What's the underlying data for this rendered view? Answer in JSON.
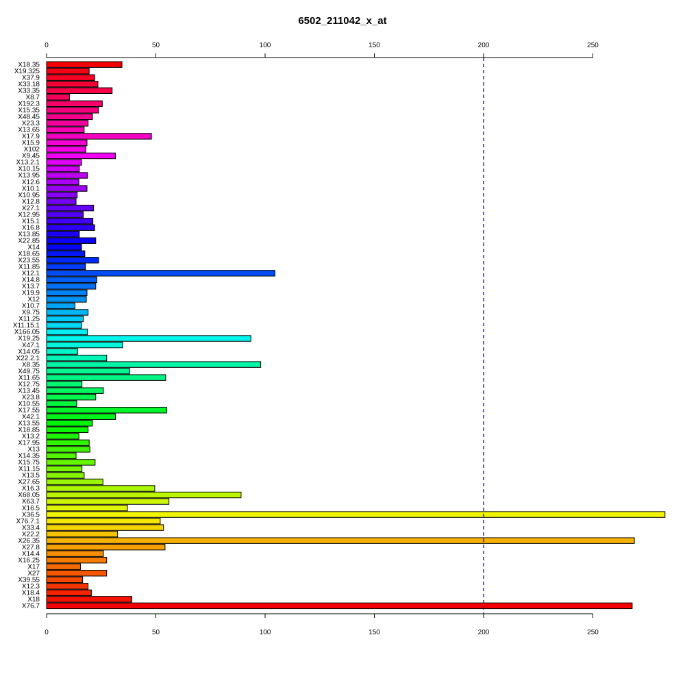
{
  "chart_data": {
    "type": "bar",
    "orientation": "horizontal",
    "title": "6502_211042_x_at",
    "xlabel": "",
    "ylabel": "",
    "xlim": [
      0,
      283
    ],
    "x_ticks": [
      0,
      50,
      100,
      150,
      200,
      250
    ],
    "x_tick_labels": [
      "0",
      "50",
      "100",
      "150",
      "200",
      "250"
    ],
    "axes": [
      "top",
      "bottom"
    ],
    "grid": false,
    "reference_line": {
      "value": 200,
      "style": "dashed",
      "color": "#00008b"
    },
    "color_scheme": "rainbow",
    "categories": [
      "X18.35",
      "X19.325",
      "X37.9",
      "X33.18",
      "X33.35",
      "X8.7",
      "X192.3",
      "X15.35",
      "X48.45",
      "X23.3",
      "X13.65",
      "X17.9",
      "X15.9",
      "X102",
      "X9.45",
      "X13.2.1",
      "X10.15",
      "X13.95",
      "X12.6",
      "X10.1",
      "X10.95",
      "X12.8",
      "X27.1",
      "X12.95",
      "X15.1",
      "X16.8",
      "X13.85",
      "X22.85",
      "X14",
      "X18.65",
      "X23.55",
      "X11.85",
      "X12.1",
      "X14.8",
      "X13.7",
      "X19.9",
      "X12",
      "X10.7",
      "X9.75",
      "X11.25",
      "X11.15.1",
      "X166.05",
      "X19.25",
      "X47.1",
      "X14.05",
      "X22.2.1",
      "X8.35",
      "X49.75",
      "X11.65",
      "X12.75",
      "X13.45",
      "X23.8",
      "X10.55",
      "X17.55",
      "X42.1",
      "X13.55",
      "X18.85",
      "X13.2",
      "X17.95",
      "X13",
      "X14.35",
      "X15.75",
      "X11.15",
      "X13.5",
      "X27.65",
      "X16.3",
      "X68.05",
      "X63.7",
      "X16.5",
      "X36.5",
      "X76.7.1",
      "X33.4",
      "X22.2",
      "X26.35",
      "X27.8",
      "X14.4",
      "X16.25",
      "X17",
      "X27",
      "X39.55",
      "X12.3",
      "X18.4",
      "X18",
      "X76.7"
    ],
    "values": [
      34.5,
      19.5,
      22,
      23.5,
      30,
      10.5,
      25.5,
      23.8,
      21,
      19,
      17.2,
      48,
      18.5,
      18,
      31.5,
      16,
      15,
      18.7,
      14.8,
      18.5,
      14,
      13.5,
      21.5,
      16.8,
      21.2,
      22,
      15,
      22.5,
      16,
      17.5,
      23.8,
      17.8,
      104.5,
      23,
      22.5,
      18.5,
      18.2,
      13,
      19,
      16.8,
      16,
      18.7,
      93.5,
      34.8,
      14.2,
      27.5,
      98,
      38,
      54.5,
      16.2,
      26,
      22.5,
      13.8,
      55,
      31.5,
      21,
      19,
      14.8,
      19.5,
      19.8,
      13.5,
      22.2,
      16.2,
      17.2,
      25.8,
      49.5,
      89,
      56,
      37,
      283,
      52,
      53.5,
      32.5,
      269,
      54.2,
      26,
      27.5,
      15.5,
      27.5,
      16.5,
      19,
      20.5,
      39,
      268
    ]
  }
}
